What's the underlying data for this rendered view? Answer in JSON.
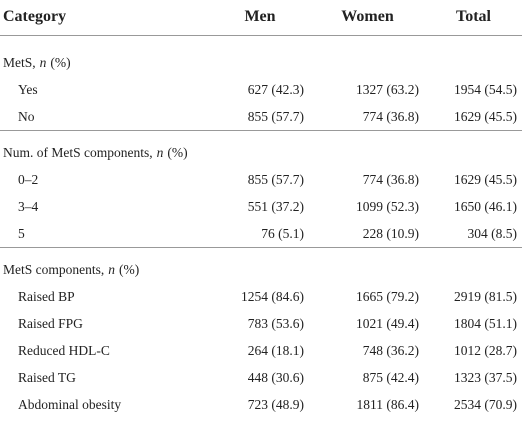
{
  "table": {
    "header": [
      "Category",
      "Men",
      "Women",
      "Total"
    ],
    "sections": [
      {
        "title": [
          "MetS,",
          "n",
          "(%)"
        ],
        "rows": [
          [
            "Yes",
            "627 (42.3)",
            "1327 (63.2)",
            "1954 (54.5)"
          ],
          [
            "No",
            "855 (57.7)",
            "774 (36.8)",
            "1629 (45.5)"
          ]
        ]
      },
      {
        "title": [
          "Num. of MetS components,",
          "n",
          "(%)"
        ],
        "rows": [
          [
            "0–2",
            "855 (57.7)",
            "774 (36.8)",
            "1629 (45.5)"
          ],
          [
            "3–4",
            "551 (37.2)",
            "1099 (52.3)",
            "1650 (46.1)"
          ],
          [
            "5",
            "76 (5.1)",
            "228 (10.9)",
            "304 (8.5)"
          ]
        ]
      },
      {
        "title": [
          "MetS components,",
          "n",
          "(%)"
        ],
        "rows": [
          [
            "Raised BP",
            "1254 (84.6)",
            "1665 (79.2)",
            "2919 (81.5)"
          ],
          [
            "Raised FPG",
            "783 (53.6)",
            "1021 (49.4)",
            "1804 (51.1)"
          ],
          [
            "Reduced HDL-C",
            "264 (18.1)",
            "748 (36.2)",
            "1012 (28.7)"
          ],
          [
            "Raised TG",
            "448 (30.6)",
            "875 (42.4)",
            "1323 (37.5)"
          ],
          [
            "Abdominal obesity",
            "723 (48.9)",
            "1811 (86.4)",
            "2534 (70.9)"
          ]
        ]
      }
    ]
  }
}
